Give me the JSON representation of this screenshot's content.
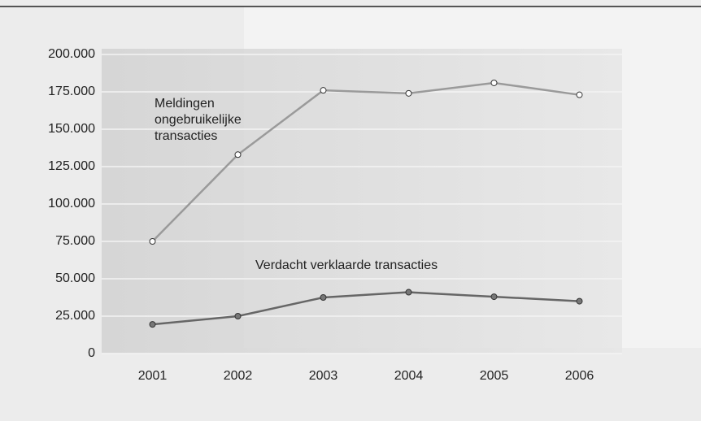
{
  "chart_data": {
    "type": "line",
    "categories": [
      "2001",
      "2002",
      "2003",
      "2004",
      "2005",
      "2006"
    ],
    "series": [
      {
        "name": "Meldingen ongebruikelijke transacties",
        "color": "#9a9a9a",
        "values": [
          75000,
          133000,
          176000,
          174000,
          181000,
          173000
        ]
      },
      {
        "name": "Verdacht verklaarde transacties",
        "color": "#666666",
        "values": [
          19500,
          25000,
          37500,
          41000,
          38000,
          35000
        ]
      }
    ],
    "ylim": [
      0,
      200000
    ],
    "yticks": [
      0,
      {
        "value": 25000,
        "label": "25.000"
      },
      {
        "value": 50000,
        "label": "50.000"
      },
      {
        "value": 75000,
        "label": "75.000"
      },
      {
        "value": 100000,
        "label": "100.000"
      },
      {
        "value": 125000,
        "label": "125.000"
      },
      {
        "value": 150000,
        "label": "150.000"
      },
      {
        "value": 175000,
        "label": "175.000"
      },
      {
        "value": 200000,
        "label": "200.000"
      }
    ],
    "grid": true
  }
}
